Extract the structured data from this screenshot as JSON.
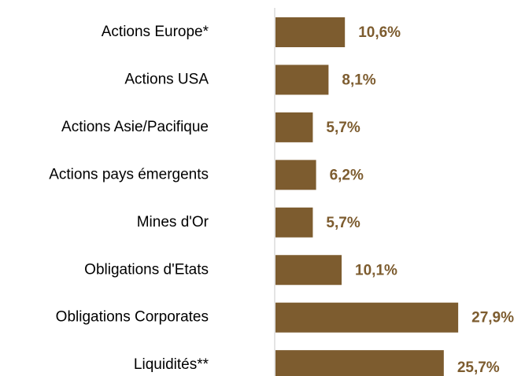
{
  "chart_data": {
    "type": "bar",
    "orientation": "horizontal",
    "categories": [
      "Actions Europe*",
      "Actions USA",
      "Actions Asie/Pacifique",
      "Actions pays émergents",
      "Mines d'Or",
      "Obligations d'Etats",
      "Obligations Corporates",
      "Liquidités**"
    ],
    "values": [
      10.6,
      8.1,
      5.7,
      6.2,
      5.7,
      10.1,
      27.9,
      25.7
    ],
    "value_labels": [
      "10,6%",
      "8,1%",
      "5,7%",
      "6,2%",
      "5,7%",
      "10,1%",
      "27,9%",
      "25,7%"
    ],
    "color": "#7d5c2f"
  }
}
